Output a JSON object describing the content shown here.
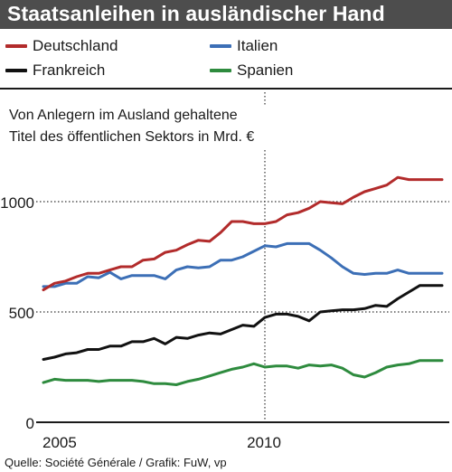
{
  "header": {
    "title": "Staatsanleihen in ausländischer Hand"
  },
  "legend": {
    "items": [
      {
        "label": "Deutschland",
        "color": "#b22b2b"
      },
      {
        "label": "Italien",
        "color": "#3c6fb6"
      },
      {
        "label": "Frankreich",
        "color": "#111111"
      },
      {
        "label": "Spanien",
        "color": "#2e8b3e"
      }
    ]
  },
  "subtitle": {
    "line1": "Von Anlegern im Ausland gehaltene",
    "line2": "Titel des öffentlichen Sektors in Mrd. €"
  },
  "footer": {
    "source": "Quelle: Société Générale / Grafik: FuW, vp"
  },
  "chart_data": {
    "type": "line",
    "title": "Staatsanleihen in ausländischer Hand",
    "subtitle": "Von Anlegern im Ausland gehaltene Titel des öffentlichen Sektors in Mrd. €",
    "xlabel": "",
    "ylabel": "",
    "xlim": [
      2005.0,
      2014.0
    ],
    "ylim": [
      0,
      1200
    ],
    "yticks": [
      0,
      500,
      1000
    ],
    "xtick_labels": [
      "2005",
      "2010"
    ],
    "xticks": [
      2005.0,
      2010.0
    ],
    "gridlines_y": [
      500,
      1000
    ],
    "gridline_x": 2010.0,
    "series": [
      {
        "name": "Deutschland",
        "color": "#b22b2b",
        "x": [
          2005.0,
          2005.25,
          2005.5,
          2005.75,
          2006.0,
          2006.25,
          2006.5,
          2006.75,
          2007.0,
          2007.25,
          2007.5,
          2007.75,
          2008.0,
          2008.25,
          2008.5,
          2008.75,
          2009.0,
          2009.25,
          2009.5,
          2009.75,
          2010.0,
          2010.25,
          2010.5,
          2010.75,
          2011.0,
          2011.25,
          2011.5,
          2011.75,
          2012.0,
          2012.25,
          2012.5,
          2012.75,
          2013.0,
          2013.25,
          2013.5,
          2013.75,
          2014.0
        ],
        "values": [
          600,
          630,
          640,
          660,
          675,
          675,
          690,
          705,
          705,
          735,
          740,
          770,
          780,
          805,
          825,
          820,
          860,
          910,
          910,
          900,
          900,
          910,
          940,
          950,
          970,
          1000,
          995,
          990,
          1020,
          1045,
          1060,
          1075,
          1110,
          1100,
          1100,
          1100,
          1100
        ]
      },
      {
        "name": "Italien",
        "color": "#3c6fb6",
        "x": [
          2005.0,
          2005.25,
          2005.5,
          2005.75,
          2006.0,
          2006.25,
          2006.5,
          2006.75,
          2007.0,
          2007.25,
          2007.5,
          2007.75,
          2008.0,
          2008.25,
          2008.5,
          2008.75,
          2009.0,
          2009.25,
          2009.5,
          2009.75,
          2010.0,
          2010.25,
          2010.5,
          2010.75,
          2011.0,
          2011.25,
          2011.5,
          2011.75,
          2012.0,
          2012.25,
          2012.5,
          2012.75,
          2013.0,
          2013.25,
          2013.5,
          2013.75,
          2014.0
        ],
        "values": [
          615,
          615,
          630,
          630,
          660,
          655,
          680,
          650,
          665,
          665,
          665,
          650,
          690,
          705,
          700,
          705,
          735,
          735,
          750,
          775,
          800,
          795,
          810,
          810,
          810,
          780,
          745,
          705,
          675,
          670,
          675,
          675,
          690,
          675,
          675,
          675,
          675
        ]
      },
      {
        "name": "Frankreich",
        "color": "#111111",
        "x": [
          2005.0,
          2005.25,
          2005.5,
          2005.75,
          2006.0,
          2006.25,
          2006.5,
          2006.75,
          2007.0,
          2007.25,
          2007.5,
          2007.75,
          2008.0,
          2008.25,
          2008.5,
          2008.75,
          2009.0,
          2009.25,
          2009.5,
          2009.75,
          2010.0,
          2010.25,
          2010.5,
          2010.75,
          2011.0,
          2011.25,
          2011.5,
          2011.75,
          2012.0,
          2012.25,
          2012.5,
          2012.75,
          2013.0,
          2013.25,
          2013.5,
          2013.75,
          2014.0
        ],
        "values": [
          285,
          295,
          310,
          315,
          330,
          330,
          345,
          345,
          365,
          365,
          380,
          355,
          385,
          380,
          395,
          405,
          400,
          420,
          440,
          435,
          475,
          490,
          490,
          480,
          460,
          500,
          505,
          510,
          510,
          515,
          530,
          525,
          560,
          590,
          620,
          620,
          620
        ]
      },
      {
        "name": "Spanien",
        "color": "#2e8b3e",
        "x": [
          2005.0,
          2005.25,
          2005.5,
          2005.75,
          2006.0,
          2006.25,
          2006.5,
          2006.75,
          2007.0,
          2007.25,
          2007.5,
          2007.75,
          2008.0,
          2008.25,
          2008.5,
          2008.75,
          2009.0,
          2009.25,
          2009.5,
          2009.75,
          2010.0,
          2010.25,
          2010.5,
          2010.75,
          2011.0,
          2011.25,
          2011.5,
          2011.75,
          2012.0,
          2012.25,
          2012.5,
          2012.75,
          2013.0,
          2013.25,
          2013.5,
          2013.75,
          2014.0
        ],
        "values": [
          180,
          195,
          190,
          190,
          190,
          185,
          190,
          190,
          190,
          185,
          175,
          175,
          170,
          185,
          195,
          210,
          225,
          240,
          250,
          265,
          250,
          255,
          255,
          245,
          260,
          255,
          260,
          245,
          215,
          205,
          225,
          250,
          260,
          265,
          280,
          280,
          280
        ]
      }
    ]
  }
}
